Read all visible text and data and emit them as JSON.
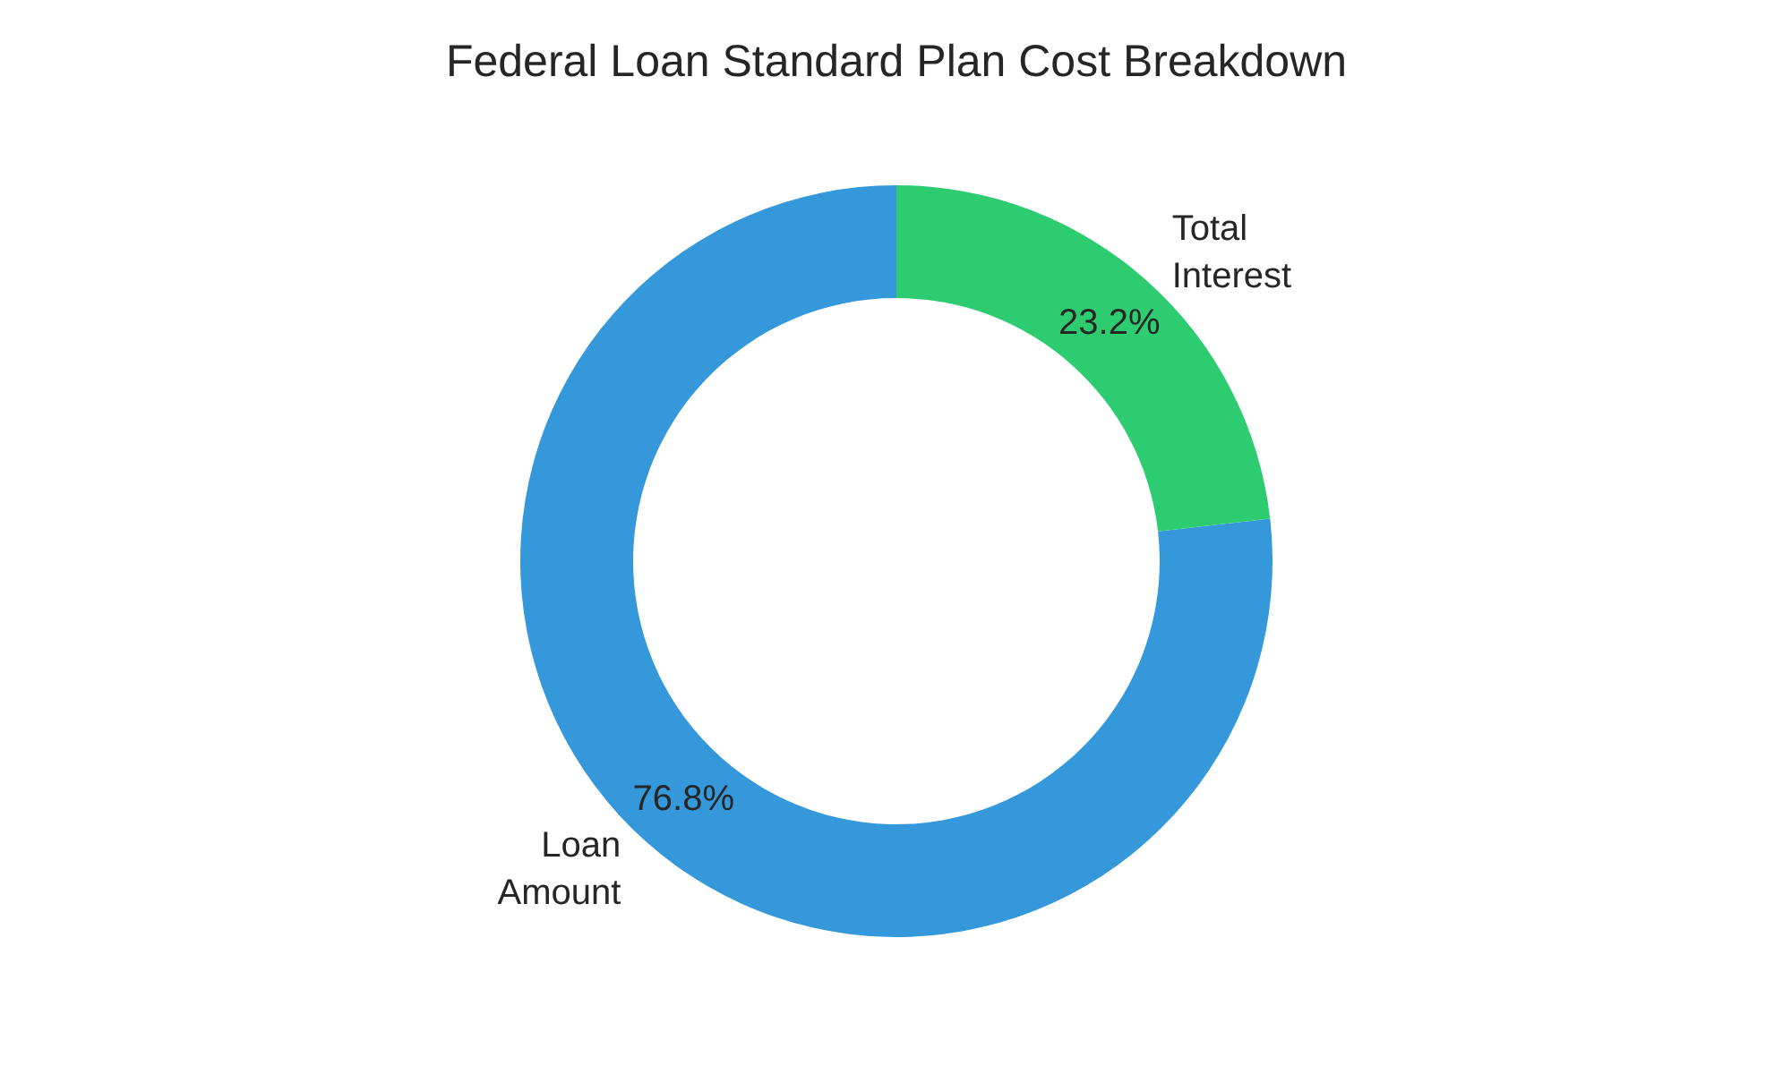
{
  "chart_data": {
    "type": "donut",
    "title": "Federal Loan Standard Plan Cost Breakdown",
    "categories": [
      "Loan\nAmount",
      "Total\nInterest"
    ],
    "values": [
      76.8,
      23.2
    ],
    "colors": [
      "#3498db",
      "#2ecc71"
    ],
    "value_labels": [
      "76.8%",
      "23.2%"
    ]
  }
}
